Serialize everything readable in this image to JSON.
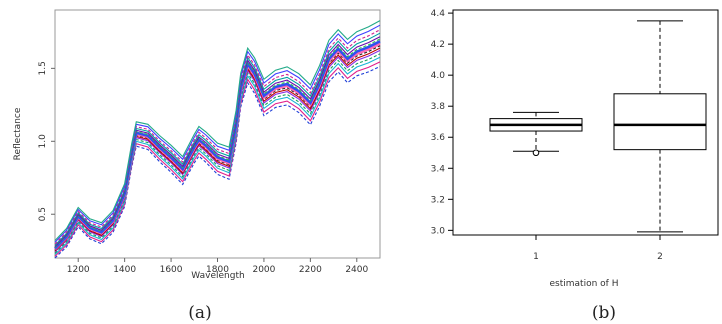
{
  "chart_data": [
    {
      "type": "line",
      "caption": "(a)",
      "xlabel": "Wavelength",
      "ylabel": "Reflectance",
      "x_ticks": [
        "1200",
        "1400",
        "1600",
        "1800",
        "2000",
        "2200",
        "2400"
      ],
      "y_ticks": [
        "0.5",
        "1.0",
        "1.5"
      ],
      "xlim": [
        1100,
        2500
      ],
      "ylim": [
        0.2,
        1.9
      ],
      "x": [
        1100,
        1150,
        1200,
        1250,
        1300,
        1350,
        1400,
        1430,
        1450,
        1500,
        1550,
        1600,
        1650,
        1700,
        1720,
        1750,
        1800,
        1850,
        1880,
        1900,
        1930,
        1960,
        2000,
        2050,
        2100,
        2150,
        2200,
        2240,
        2280,
        2320,
        2360,
        2400,
        2450,
        2500
      ],
      "mean_values": [
        0.26,
        0.34,
        0.48,
        0.4,
        0.37,
        0.45,
        0.63,
        0.9,
        1.05,
        1.03,
        0.95,
        0.88,
        0.8,
        0.95,
        1.0,
        0.96,
        0.88,
        0.85,
        1.1,
        1.35,
        1.52,
        1.45,
        1.3,
        1.36,
        1.38,
        1.33,
        1.25,
        1.38,
        1.55,
        1.62,
        1.55,
        1.6,
        1.63,
        1.67
      ],
      "offsets": [
        -0.1,
        -0.08,
        -0.06,
        -0.045,
        -0.03,
        -0.02,
        -0.01,
        0,
        0.01,
        0.02,
        0.03,
        0.045,
        0.06,
        0.08,
        0.1
      ],
      "colors": [
        "#1f3fd8",
        "#e0208c",
        "#19b5d6",
        "#1aa05a",
        "#8a2be2",
        "#c00000",
        "#222222",
        "#ff69b4",
        "#3050f0",
        "#2fbf4f",
        "#6a0dad",
        "#00a0a0",
        "#d02090",
        "#4040ff",
        "#22aa88"
      ]
    },
    {
      "type": "box",
      "caption": "(b)",
      "xlabel": "estimation of H",
      "ylabel": "",
      "categories": [
        "1",
        "2"
      ],
      "y_ticks": [
        "3.0",
        "3.2",
        "3.4",
        "3.6",
        "3.8",
        "4.0",
        "4.2",
        "4.4"
      ],
      "ylim": [
        2.97,
        4.42
      ],
      "boxes": [
        {
          "name": "1",
          "min": 3.51,
          "q1": 3.64,
          "median": 3.68,
          "q3": 3.72,
          "max": 3.76,
          "outliers": [
            3.5
          ]
        },
        {
          "name": "2",
          "min": 2.99,
          "q1": 3.52,
          "median": 3.68,
          "q3": 3.88,
          "max": 4.35,
          "outliers": []
        }
      ]
    }
  ]
}
